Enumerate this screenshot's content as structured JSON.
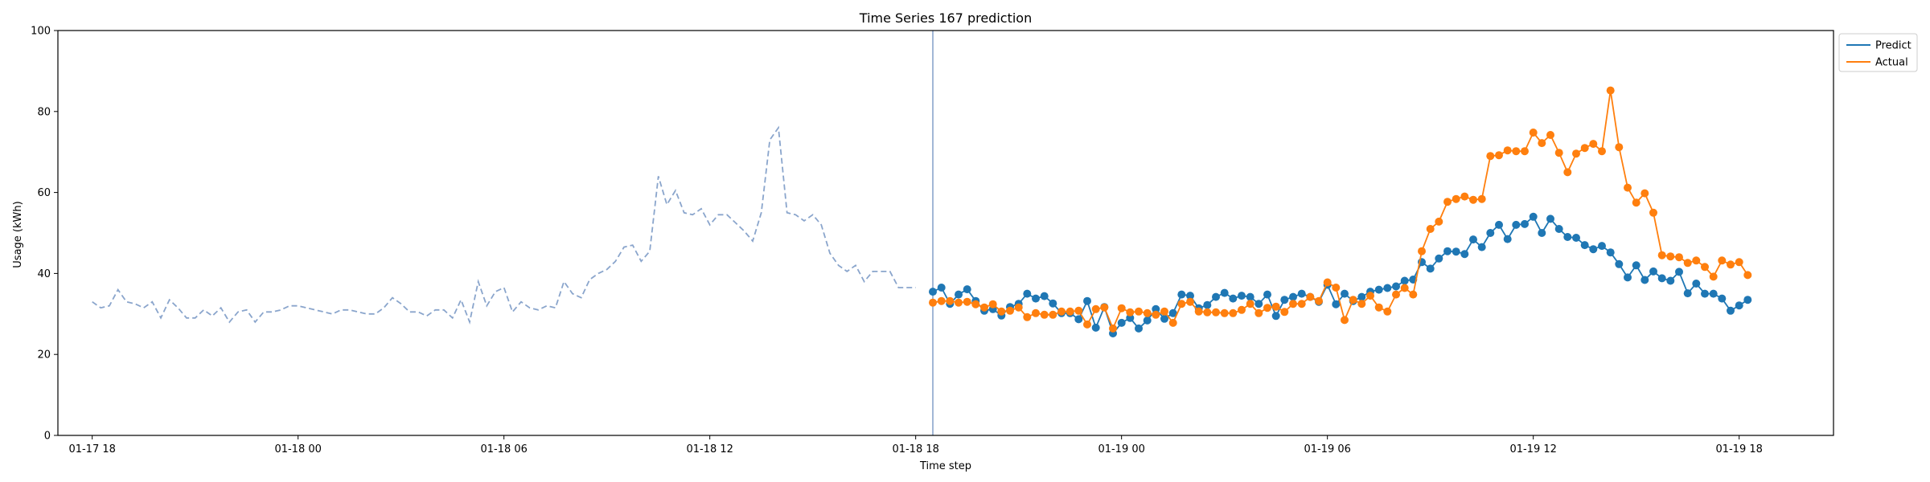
{
  "chart_data": {
    "type": "line",
    "title": "Time Series 167 prediction",
    "xlabel": "Time step",
    "ylabel": "Usage (kWh)",
    "ylim": [
      0,
      100
    ],
    "yticks": [
      0,
      20,
      40,
      60,
      80,
      100
    ],
    "xlim": [
      "2024-01-17 17:00",
      "2024-01-19 20:45"
    ],
    "xticks": [
      {
        "t": "2024-01-17 18:00",
        "label": "01-17 18"
      },
      {
        "t": "2024-01-18 00:00",
        "label": "01-18 00"
      },
      {
        "t": "2024-01-18 06:00",
        "label": "01-18 06"
      },
      {
        "t": "2024-01-18 12:00",
        "label": "01-18 12"
      },
      {
        "t": "2024-01-18 18:00",
        "label": "01-18 18"
      },
      {
        "t": "2024-01-19 00:00",
        "label": "01-19 00"
      },
      {
        "t": "2024-01-19 06:00",
        "label": "01-19 06"
      },
      {
        "t": "2024-01-19 12:00",
        "label": "01-19 12"
      },
      {
        "t": "2024-01-19 18:00",
        "label": "01-19 18"
      }
    ],
    "interval_minutes": 15,
    "forecast_start": "2024-01-18 18:30",
    "legend_position": "top-right",
    "grid": false,
    "colors": {
      "history": "#8aa5cc",
      "predict": "#1f77b4",
      "actual": "#ff7f0e",
      "divider": "#8aa5cc"
    },
    "history": {
      "start": "2024-01-17 18:00",
      "values": [
        33,
        31.5,
        32,
        36,
        33,
        32.5,
        31.5,
        33,
        29,
        33.5,
        31.5,
        29,
        29,
        31,
        29.5,
        31.5,
        28,
        30.5,
        31,
        28,
        30.5,
        30.5,
        31,
        32,
        32,
        31.5,
        31,
        30.5,
        30,
        31,
        31,
        30.5,
        30,
        30,
        31.5,
        34,
        32.5,
        30.5,
        30.5,
        29.5,
        31,
        31,
        29,
        33.5,
        28,
        38,
        32,
        35.5,
        36.5,
        30.5,
        33,
        31.5,
        31,
        32,
        31.5,
        38,
        35,
        34,
        38.5,
        40,
        41,
        43,
        46.5,
        47,
        43,
        45.5,
        64,
        57,
        60.5,
        55,
        54.5,
        56,
        52,
        54.5,
        54.5,
        52.5,
        50.5,
        48,
        55,
        73,
        76,
        55,
        54.5,
        53,
        54.5,
        52,
        45,
        42,
        40.5,
        42,
        38,
        40.5,
        40.5,
        40.5,
        36.5,
        36.5,
        36.5
      ]
    },
    "series": [
      {
        "name": "Predict",
        "start": "2024-01-18 18:30",
        "values": [
          35.5,
          36.5,
          32.5,
          34.8,
          36.1,
          33.2,
          30.8,
          31.2,
          29.6,
          31.7,
          32.5,
          35,
          33.8,
          34.4,
          32.6,
          30.2,
          30.2,
          28.7,
          33.2,
          26.6,
          31.7,
          25.2,
          27.8,
          29,
          26.4,
          28.4,
          31.2,
          28.8,
          30.2,
          34.8,
          34.5,
          31.4,
          32.2,
          34.2,
          35.2,
          33.8,
          34.5,
          34.2,
          32.5,
          34.8,
          29.5,
          33.5,
          34.2,
          35,
          34.2,
          33,
          37.2,
          32.4,
          35,
          33.2,
          34.2,
          35.5,
          36,
          36.4,
          36.8,
          38.2,
          38.5,
          42.8,
          41.2,
          43.7,
          45.5,
          45.4,
          44.8,
          48.4,
          46.5,
          50,
          52,
          48.5,
          52,
          52.2,
          54,
          50,
          53.5,
          51,
          49,
          48.8,
          47,
          46,
          46.8,
          45.2,
          42.3,
          39,
          42,
          38.4,
          40.5,
          38.8,
          38.2,
          40.4,
          35.1,
          37.5,
          35,
          35,
          33.8,
          30.8,
          32.1,
          33.5
        ]
      },
      {
        "name": "Actual",
        "start": "2024-01-18 18:30",
        "values": [
          32.8,
          33.2,
          33.2,
          32.8,
          33,
          32.4,
          31.6,
          32.4,
          30.6,
          30.8,
          31.6,
          29.2,
          30.2,
          29.8,
          29.8,
          30.6,
          30.6,
          30.8,
          27.4,
          31.2,
          31.6,
          26.4,
          31.4,
          30.4,
          30.6,
          30.2,
          29.8,
          30.6,
          27.8,
          32.5,
          33,
          30.6,
          30.4,
          30.4,
          30.2,
          30.2,
          31,
          32.5,
          30.2,
          31.5,
          31.8,
          30.5,
          32.5,
          32.5,
          34.2,
          33.2,
          37.8,
          36.5,
          28.5,
          33.5,
          32.5,
          34.5,
          31.6,
          30.6,
          34.8,
          36.4,
          34.8,
          45.5,
          51,
          52.8,
          57.7,
          58.4,
          59,
          58.2,
          58.4,
          69,
          69.2,
          70.4,
          70.2,
          70.2,
          74.8,
          72.2,
          74.2,
          69.8,
          65,
          69.6,
          71,
          72,
          70.2,
          85.2,
          71.2,
          61.2,
          57.5,
          59.8,
          55,
          44.5,
          44.2,
          44,
          42.6,
          43.2,
          41.6,
          39.2,
          43.2,
          42.2,
          42.8,
          39.6
        ]
      }
    ]
  }
}
